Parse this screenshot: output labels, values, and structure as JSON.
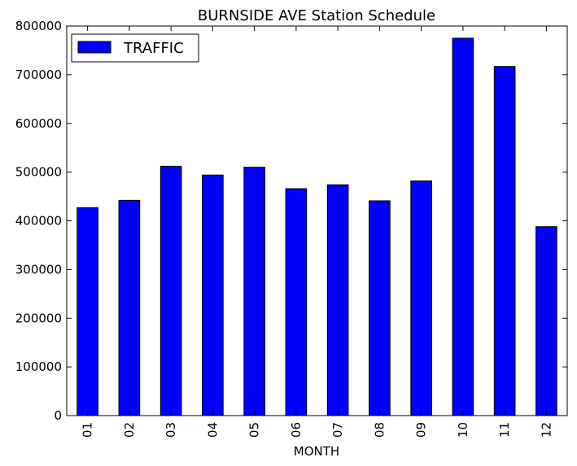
{
  "chart_data": {
    "type": "bar",
    "title": "BURNSIDE AVE Station Schedule",
    "xlabel": "MONTH",
    "ylabel": "",
    "categories": [
      "01",
      "02",
      "03",
      "04",
      "05",
      "06",
      "07",
      "08",
      "09",
      "10",
      "11",
      "12"
    ],
    "series": [
      {
        "name": "TRAFFIC",
        "values": [
          427000,
          442000,
          512000,
          494000,
          510000,
          466000,
          474000,
          441000,
          482000,
          775000,
          717000,
          388000
        ],
        "color": "#0000ff"
      }
    ],
    "ylim": [
      0,
      800000
    ],
    "yticks": [
      0,
      100000,
      200000,
      300000,
      400000,
      500000,
      600000,
      700000,
      800000
    ],
    "ytick_labels": [
      "0",
      "100000",
      "200000",
      "300000",
      "400000",
      "500000",
      "600000",
      "700000",
      "800000"
    ],
    "grid": false,
    "legend_position": "top-left",
    "bar_edge_color": "#000000"
  }
}
